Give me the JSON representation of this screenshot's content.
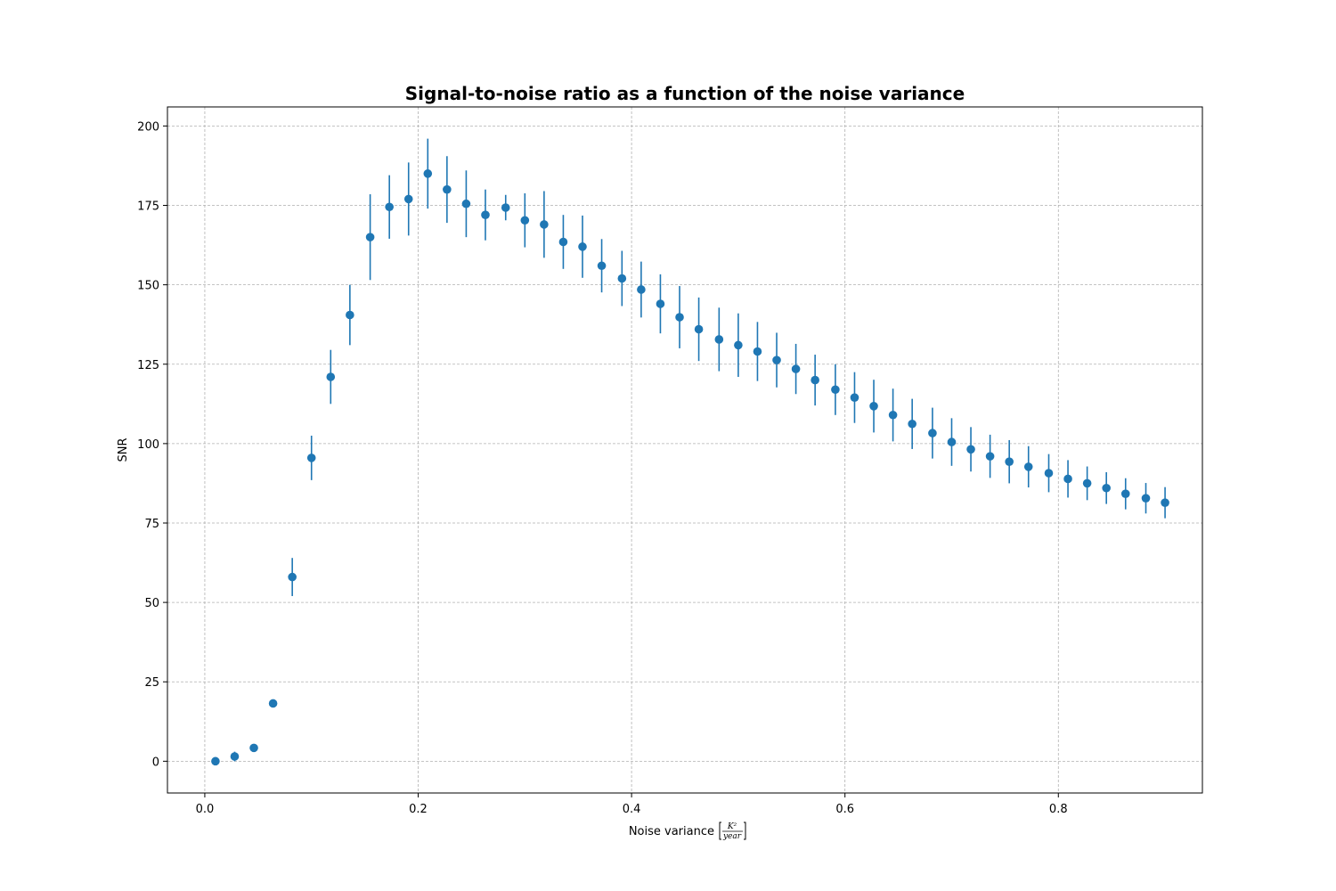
{
  "chart_data": {
    "type": "scatter",
    "title": "Signal-to-noise ratio as a function of the noise variance",
    "xlabel": "Noise variance",
    "xlabel_unit": {
      "numerator": "K²",
      "denominator": "year"
    },
    "ylabel": "SNR",
    "xlim": [
      -0.035,
      0.935
    ],
    "ylim": [
      -10,
      206
    ],
    "xticks": [
      0.0,
      0.2,
      0.4,
      0.6,
      0.8
    ],
    "xtick_labels": [
      "0.0",
      "0.2",
      "0.4",
      "0.6",
      "0.8"
    ],
    "yticks": [
      0,
      25,
      50,
      75,
      100,
      125,
      150,
      175,
      200
    ],
    "ytick_labels": [
      "0",
      "25",
      "50",
      "75",
      "100",
      "125",
      "150",
      "175",
      "200"
    ],
    "grid": true,
    "color": "#1f77b4",
    "series": [
      {
        "x": [
          0.01,
          0.028,
          0.046,
          0.064,
          0.082,
          0.1,
          0.118,
          0.136,
          0.155,
          0.173,
          0.191,
          0.209,
          0.227,
          0.245,
          0.263,
          0.282,
          0.3,
          0.318,
          0.336,
          0.354,
          0.372,
          0.391,
          0.409,
          0.427,
          0.445,
          0.463,
          0.482,
          0.5,
          0.518,
          0.536,
          0.554,
          0.572,
          0.591,
          0.609,
          0.627,
          0.645,
          0.663,
          0.682,
          0.7,
          0.718,
          0.736,
          0.754,
          0.772,
          0.791,
          0.809,
          0.827,
          0.845,
          0.863,
          0.882,
          0.9
        ],
        "y": [
          0.0,
          1.5,
          4.2,
          18.2,
          58.0,
          95.5,
          121.0,
          140.5,
          165.0,
          174.5,
          177.0,
          185.0,
          180.0,
          175.5,
          172.0,
          174.3,
          170.3,
          169.0,
          163.5,
          162.0,
          156.0,
          152.0,
          148.5,
          144.0,
          139.8,
          136.0,
          132.8,
          131.0,
          129.0,
          126.3,
          123.5,
          120.0,
          117.0,
          114.5,
          111.8,
          109.0,
          106.2,
          103.3,
          100.5,
          98.2,
          96.0,
          94.3,
          92.7,
          90.7,
          88.9,
          87.5,
          86.0,
          84.2,
          82.8,
          81.4
        ],
        "yerr": [
          0.3,
          1.5,
          0.6,
          1.0,
          6.0,
          7.0,
          8.5,
          9.5,
          13.5,
          10.0,
          11.5,
          11.0,
          10.5,
          10.5,
          8.0,
          4.0,
          8.5,
          10.5,
          8.5,
          9.8,
          8.4,
          8.7,
          8.8,
          9.3,
          9.8,
          10.0,
          10.0,
          10.0,
          9.3,
          8.6,
          7.9,
          8.0,
          8.0,
          8.0,
          8.3,
          8.3,
          7.9,
          8.0,
          7.5,
          7.0,
          6.8,
          6.8,
          6.5,
          6.0,
          5.9,
          5.3,
          5.0,
          4.9,
          4.8,
          4.9
        ]
      }
    ]
  }
}
